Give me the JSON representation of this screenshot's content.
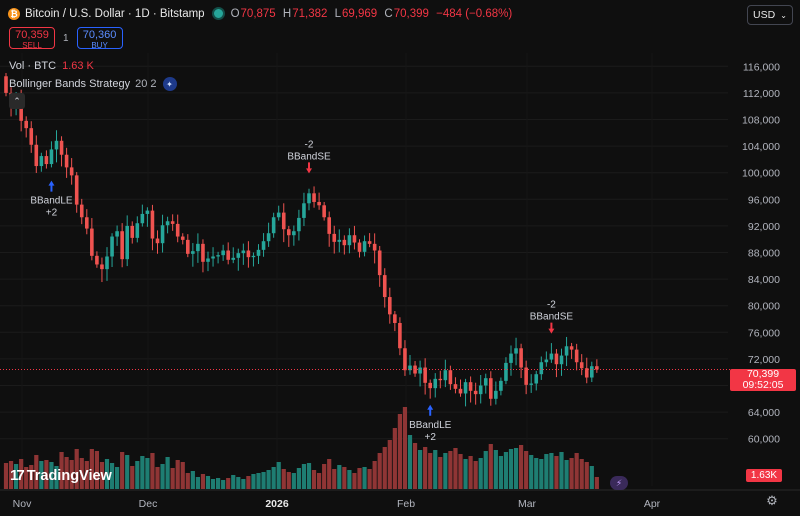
{
  "header": {
    "symbol_title": "Bitcoin / U.S. Dollar · 1D · Bitstamp",
    "coin_glyph": "₿",
    "ohlc": [
      {
        "key": "O",
        "value": "70,875"
      },
      {
        "key": "H",
        "value": "71,382"
      },
      {
        "key": "L",
        "value": "69,969"
      },
      {
        "key": "C",
        "value": "70,399"
      }
    ],
    "change": "−484 (−0.68%)"
  },
  "trade": {
    "sell_price": "70,359",
    "sell_label": "SELL",
    "quantity": "1",
    "buy_price": "70,360",
    "buy_label": "BUY"
  },
  "volume_legend": {
    "label": "Vol · BTC",
    "value": "1.63 K"
  },
  "strategy_legend": {
    "label": "Bollinger Bands Strategy",
    "params": "20 2"
  },
  "currency_selector": {
    "value": "USD"
  },
  "price_badge": {
    "price": "70,399",
    "countdown": "09:52:05"
  },
  "volume_badge": "1.63K",
  "brand": {
    "name": "TradingView",
    "mark": "17"
  },
  "colors": {
    "up": "#26a69a",
    "down": "#ef5350",
    "up_volume": "#1e7d72",
    "down_volume": "#8f3535",
    "background": "#0f0f0f",
    "last_price_line": "#f23645",
    "signal_long": "#2962ff",
    "signal_short": "#f23645"
  },
  "chart_data": {
    "type": "candlestick",
    "x_axis": {
      "tick_labels": [
        "Nov",
        "Dec",
        "2026",
        "Feb",
        "Mar",
        "Apr"
      ]
    },
    "y_axis": {
      "tick_labels": [
        "116,000",
        "112,000",
        "108,000",
        "104,000",
        "100,000",
        "96,000",
        "92,000",
        "88,000",
        "84,000",
        "80,000",
        "76,000",
        "72,000",
        "68,000",
        "64,000",
        "60,000"
      ],
      "range": [
        58000,
        118000
      ]
    },
    "last_price": 70399,
    "closes": [
      112000,
      110400,
      110900,
      107800,
      106700,
      104200,
      101000,
      102500,
      101300,
      103500,
      104800,
      102700,
      100800,
      99600,
      95200,
      93300,
      91600,
      87500,
      86200,
      85500,
      87400,
      90400,
      91200,
      87000,
      92000,
      90200,
      92400,
      93800,
      94300,
      90100,
      89400,
      92100,
      92700,
      92300,
      90400,
      89900,
      87800,
      88200,
      89300,
      86600,
      87100,
      87400,
      87600,
      88300,
      86900,
      87200,
      87900,
      88300,
      87300,
      87500,
      88400,
      89700,
      90900,
      93300,
      94000,
      91500,
      90600,
      91200,
      93200,
      95400,
      96900,
      95600,
      95100,
      93300,
      90800,
      89600,
      89900,
      89100,
      90600,
      89500,
      88100,
      89700,
      89300,
      88300,
      84600,
      81300,
      78700,
      77400,
      73600,
      70300,
      71000,
      69800,
      70700,
      68400,
      67600,
      69000,
      68800,
      70300,
      68200,
      67500,
      66800,
      68500,
      67200,
      66700,
      68000,
      69100,
      66000,
      67200,
      68700,
      71400,
      72800,
      73600,
      70700,
      68100,
      68300,
      69700,
      71500,
      71900,
      72800,
      71200,
      72500,
      73900,
      73400,
      71500,
      70600,
      69200,
      70900,
      70399
    ],
    "volumes": [
      26,
      28,
      25,
      30,
      22,
      24,
      34,
      28,
      29,
      27,
      23,
      37,
      32,
      29,
      40,
      31,
      28,
      40,
      38,
      27,
      30,
      26,
      22,
      37,
      34,
      23,
      28,
      33,
      31,
      36,
      22,
      25,
      32,
      21,
      29,
      27,
      16,
      18,
      12,
      15,
      13,
      10,
      11,
      9,
      11,
      14,
      12,
      10,
      13,
      15,
      16,
      17,
      19,
      22,
      27,
      20,
      17,
      16,
      21,
      25,
      26,
      19,
      16,
      25,
      30,
      20,
      24,
      22,
      19,
      16,
      21,
      22,
      20,
      28,
      36,
      42,
      49,
      61,
      75,
      82,
      54,
      46,
      39,
      42,
      36,
      39,
      32,
      36,
      38,
      41,
      35,
      30,
      33,
      28,
      31,
      38,
      45,
      39,
      33,
      37,
      40,
      41,
      44,
      38,
      34,
      31,
      30,
      35,
      36,
      33,
      37,
      29,
      31,
      36,
      30,
      27,
      23,
      12
    ],
    "signals": [
      {
        "type": "long",
        "index": 9,
        "text": "BBandLE",
        "qty": "+2"
      },
      {
        "type": "short",
        "index": 60,
        "text": "BBandSE",
        "qty": "-2"
      },
      {
        "type": "long",
        "index": 84,
        "text": "BBandLE",
        "qty": "+2"
      },
      {
        "type": "short",
        "index": 108,
        "text": "BBandSE",
        "qty": "-2"
      }
    ]
  }
}
